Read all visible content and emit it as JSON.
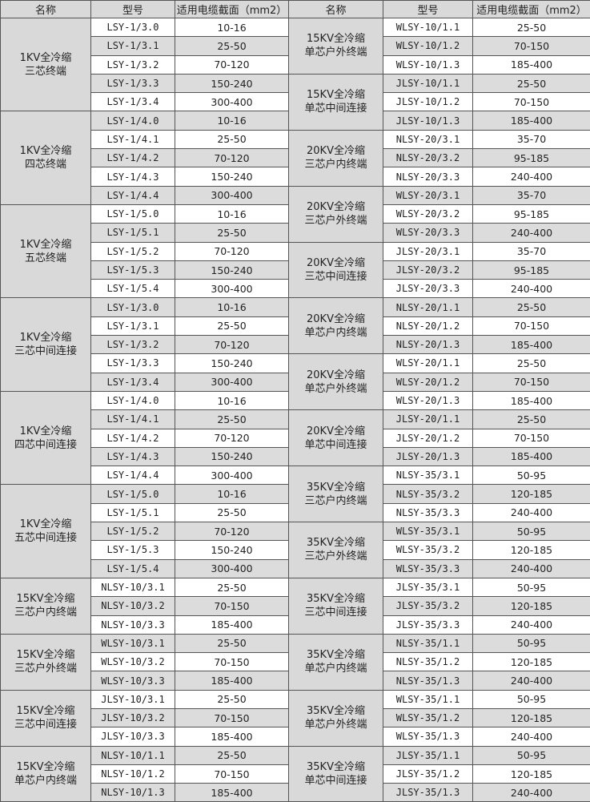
{
  "headers": {
    "name": "名称",
    "model": "型号",
    "range": "适用电缆截面（mm2）"
  },
  "left_groups": [
    {
      "name": [
        "1KV全冷缩",
        "三芯终端"
      ],
      "items": [
        [
          "LSY-1/3.0",
          "10-16"
        ],
        [
          "LSY-1/3.1",
          "25-50"
        ],
        [
          "LSY-1/3.2",
          "70-120"
        ],
        [
          "LSY-1/3.3",
          "150-240"
        ],
        [
          "LSY-1/3.4",
          "300-400"
        ]
      ]
    },
    {
      "name": [
        "1KV全冷缩",
        "四芯终端"
      ],
      "items": [
        [
          "LSY-1/4.0",
          "10-16"
        ],
        [
          "LSY-1/4.1",
          "25-50"
        ],
        [
          "LSY-1/4.2",
          "70-120"
        ],
        [
          "LSY-1/4.3",
          "150-240"
        ],
        [
          "LSY-1/4.4",
          "300-400"
        ]
      ]
    },
    {
      "name": [
        "1KV全冷缩",
        "五芯终端"
      ],
      "items": [
        [
          "LSY-1/5.0",
          "10-16"
        ],
        [
          "LSY-1/5.1",
          "25-50"
        ],
        [
          "LSY-1/5.2",
          "70-120"
        ],
        [
          "LSY-1/5.3",
          "150-240"
        ],
        [
          "LSY-1/5.4",
          "300-400"
        ]
      ]
    },
    {
      "name": [
        "1KV全冷缩",
        "三芯中间连接"
      ],
      "items": [
        [
          "LSY-1/3.0",
          "10-16"
        ],
        [
          "LSY-1/3.1",
          "25-50"
        ],
        [
          "LSY-1/3.2",
          "70-120"
        ],
        [
          "LSY-1/3.3",
          "150-240"
        ],
        [
          "LSY-1/3.4",
          "300-400"
        ]
      ]
    },
    {
      "name": [
        "1KV全冷缩",
        "四芯中间连接"
      ],
      "items": [
        [
          "LSY-1/4.0",
          "10-16"
        ],
        [
          "LSY-1/4.1",
          "25-50"
        ],
        [
          "LSY-1/4.2",
          "70-120"
        ],
        [
          "LSY-1/4.3",
          "150-240"
        ],
        [
          "LSY-1/4.4",
          "300-400"
        ]
      ]
    },
    {
      "name": [
        "1KV全冷缩",
        "五芯中间连接"
      ],
      "items": [
        [
          "LSY-1/5.0",
          "10-16"
        ],
        [
          "LSY-1/5.1",
          "25-50"
        ],
        [
          "LSY-1/5.2",
          "70-120"
        ],
        [
          "LSY-1/5.3",
          "150-240"
        ],
        [
          "LSY-1/5.4",
          "300-400"
        ]
      ]
    },
    {
      "name": [
        "15KV全冷缩",
        "三芯户内终端"
      ],
      "items": [
        [
          "NLSY-10/3.1",
          "25-50"
        ],
        [
          "NLSY-10/3.2",
          "70-150"
        ],
        [
          "NLSY-10/3.3",
          "185-400"
        ]
      ]
    },
    {
      "name": [
        "15KV全冷缩",
        "三芯户外终端"
      ],
      "items": [
        [
          "WLSY-10/3.1",
          "25-50"
        ],
        [
          "WLSY-10/3.2",
          "70-150"
        ],
        [
          "WLSY-10/3.3",
          "185-400"
        ]
      ]
    },
    {
      "name": [
        "15KV全冷缩",
        "三芯中间连接"
      ],
      "items": [
        [
          "JLSY-10/3.1",
          "25-50"
        ],
        [
          "JLSY-10/3.2",
          "70-150"
        ],
        [
          "JLSY-10/3.3",
          "185-400"
        ]
      ]
    },
    {
      "name": [
        "15KV全冷缩",
        "单芯户内终端"
      ],
      "items": [
        [
          "NLSY-10/1.1",
          "25-50"
        ],
        [
          "NLSY-10/1.2",
          "70-150"
        ],
        [
          "NLSY-10/1.3",
          "185-400"
        ]
      ]
    }
  ],
  "right_groups": [
    {
      "name": [
        "15KV全冷缩",
        "单芯户外终端"
      ],
      "items": [
        [
          "WLSY-10/1.1",
          "25-50"
        ],
        [
          "WLSY-10/1.2",
          "70-150"
        ],
        [
          "WLSY-10/1.3",
          "185-400"
        ]
      ]
    },
    {
      "name": [
        "15KV全冷缩",
        "单芯中间连接"
      ],
      "items": [
        [
          "JLSY-10/1.1",
          "25-50"
        ],
        [
          "JLSY-10/1.2",
          "70-150"
        ],
        [
          "JLSY-10/1.3",
          "185-400"
        ]
      ]
    },
    {
      "name": [
        "20KV全冷缩",
        "三芯户内终端"
      ],
      "items": [
        [
          "NLSY-20/3.1",
          "35-70"
        ],
        [
          "NLSY-20/3.2",
          "95-185"
        ],
        [
          "NLSY-20/3.3",
          "240-400"
        ]
      ]
    },
    {
      "name": [
        "20KV全冷缩",
        "三芯户外终端"
      ],
      "items": [
        [
          "WLSY-20/3.1",
          "35-70"
        ],
        [
          "WLSY-20/3.2",
          "95-185"
        ],
        [
          "WLSY-20/3.3",
          "240-400"
        ]
      ]
    },
    {
      "name": [
        "20KV全冷缩",
        "三芯中间连接"
      ],
      "items": [
        [
          "JLSY-20/3.1",
          "35-70"
        ],
        [
          "JLSY-20/3.2",
          "95-185"
        ],
        [
          "JLSY-20/3.3",
          "240-400"
        ]
      ]
    },
    {
      "name": [
        "20KV全冷缩",
        "单芯户内终端"
      ],
      "items": [
        [
          "NLSY-20/1.1",
          "25-50"
        ],
        [
          "NLSY-20/1.2",
          "70-150"
        ],
        [
          "NLSY-20/1.3",
          "185-400"
        ]
      ]
    },
    {
      "name": [
        "20KV全冷缩",
        "单芯户外终端"
      ],
      "items": [
        [
          "WLSY-20/1.1",
          "25-50"
        ],
        [
          "WLSY-20/1.2",
          "70-150"
        ],
        [
          "WLSY-20/1.3",
          "185-400"
        ]
      ]
    },
    {
      "name": [
        "20KV全冷缩",
        "单芯中间连接"
      ],
      "items": [
        [
          "JLSY-20/1.1",
          "25-50"
        ],
        [
          "JLSY-20/1.2",
          "70-150"
        ],
        [
          "JLSY-20/1.3",
          "185-400"
        ]
      ]
    },
    {
      "name": [
        "35KV全冷缩",
        "三芯户内终端"
      ],
      "items": [
        [
          "NLSY-35/3.1",
          "50-95"
        ],
        [
          "NLSY-35/3.2",
          "120-185"
        ],
        [
          "NLSY-35/3.3",
          "240-400"
        ]
      ]
    },
    {
      "name": [
        "35KV全冷缩",
        "三芯户外终端"
      ],
      "items": [
        [
          "WLSY-35/3.1",
          "50-95"
        ],
        [
          "WLSY-35/3.2",
          "120-185"
        ],
        [
          "WLSY-35/3.3",
          "240-400"
        ]
      ]
    },
    {
      "name": [
        "35KV全冷缩",
        "三芯中间连接"
      ],
      "items": [
        [
          "JLSY-35/3.1",
          "50-95"
        ],
        [
          "JLSY-35/3.2",
          "120-185"
        ],
        [
          "JLSY-35/3.3",
          "240-400"
        ]
      ]
    },
    {
      "name": [
        "35KV全冷缩",
        "单芯户内终端"
      ],
      "items": [
        [
          "NLSY-35/1.1",
          "50-95"
        ],
        [
          "NLSY-35/1.2",
          "120-185"
        ],
        [
          "NLSY-35/1.3",
          "240-400"
        ]
      ]
    },
    {
      "name": [
        "35KV全冷缩",
        "单芯户外终端"
      ],
      "items": [
        [
          "WLSY-35/1.1",
          "50-95"
        ],
        [
          "WLSY-35/1.2",
          "120-185"
        ],
        [
          "WLSY-35/1.3",
          "240-400"
        ]
      ]
    },
    {
      "name": [
        "35KV全冷缩",
        "单芯中间连接"
      ],
      "items": [
        [
          "JLSY-35/1.1",
          "50-95"
        ],
        [
          "JLSY-35/1.2",
          "120-185"
        ],
        [
          "JLSY-35/1.3",
          "240-400"
        ]
      ]
    }
  ],
  "colors": {
    "name_bg": "#d9d9d9",
    "band_bg": "#dcdcdc",
    "border": "#555555"
  }
}
